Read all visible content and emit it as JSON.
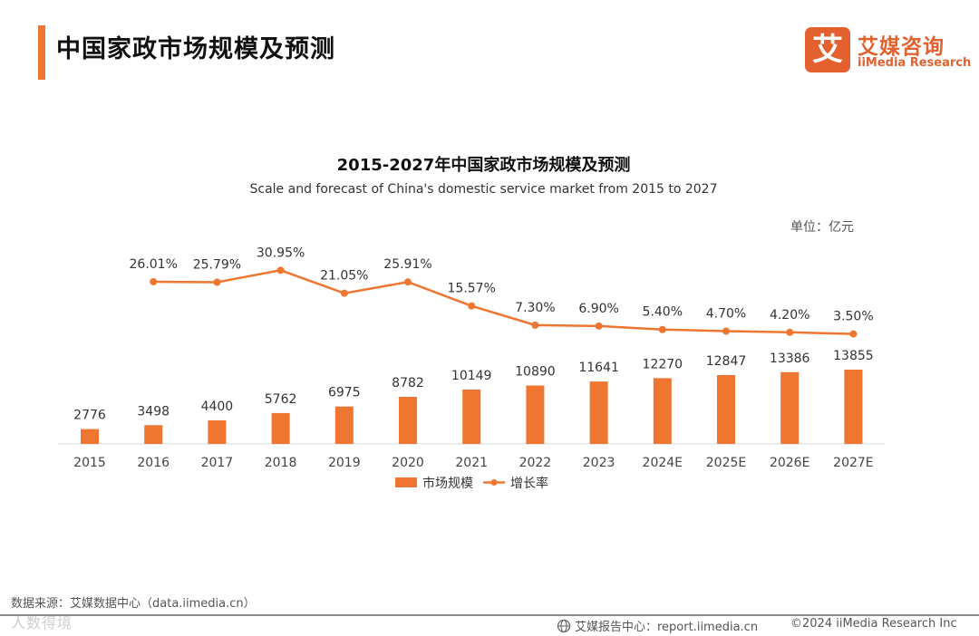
{
  "header": {
    "title": "中国家政市场规模及预测",
    "accent_color": "#ee7630"
  },
  "logo": {
    "mark": "艾",
    "name_cn": "艾媒咨询",
    "name_en": "iiMedia Research",
    "brand_color": "#e2612f"
  },
  "chart_data": {
    "type": "bar+line",
    "title": "2015-2027年中国家政市场规模及预测",
    "subtitle": "Scale and forecast of China's domestic service market from 2015 to 2027",
    "unit": "单位：亿元",
    "categories": [
      "2015",
      "2016",
      "2017",
      "2018",
      "2019",
      "2020",
      "2021",
      "2022",
      "2023",
      "2024E",
      "2025E",
      "2026E",
      "2027E"
    ],
    "series": [
      {
        "name": "市场规模",
        "kind": "bar",
        "color": "#ee7630",
        "values": [
          2776,
          3498,
          4400,
          5762,
          6975,
          8782,
          10149,
          10890,
          11641,
          12270,
          12847,
          13386,
          13855
        ],
        "labels": [
          "2776",
          "3498",
          "4400",
          "5762",
          "6975",
          "8782",
          "10149",
          "10890",
          "11641",
          "12270",
          "12847",
          "13386",
          "13855"
        ]
      },
      {
        "name": "增长率",
        "kind": "line",
        "color": "#ee7630",
        "values": [
          null,
          26.01,
          25.79,
          30.95,
          21.05,
          25.91,
          15.57,
          7.3,
          6.9,
          5.4,
          4.7,
          4.2,
          3.5
        ],
        "labels": [
          "",
          "26.01%",
          "25.79%",
          "30.95%",
          "21.05%",
          "25.91%",
          "15.57%",
          "7.30%",
          "6.90%",
          "5.40%",
          "4.70%",
          "4.20%",
          "3.50%"
        ]
      }
    ],
    "legend_position": "bottom-center",
    "grid": false
  },
  "footer": {
    "source": "数据来源：艾媒数据中心（data.iimedia.cn）",
    "report": "艾媒报告中心：report.iimedia.cn",
    "copyright": "©2024  iiMedia Research Inc",
    "watermark": "人数得境"
  }
}
